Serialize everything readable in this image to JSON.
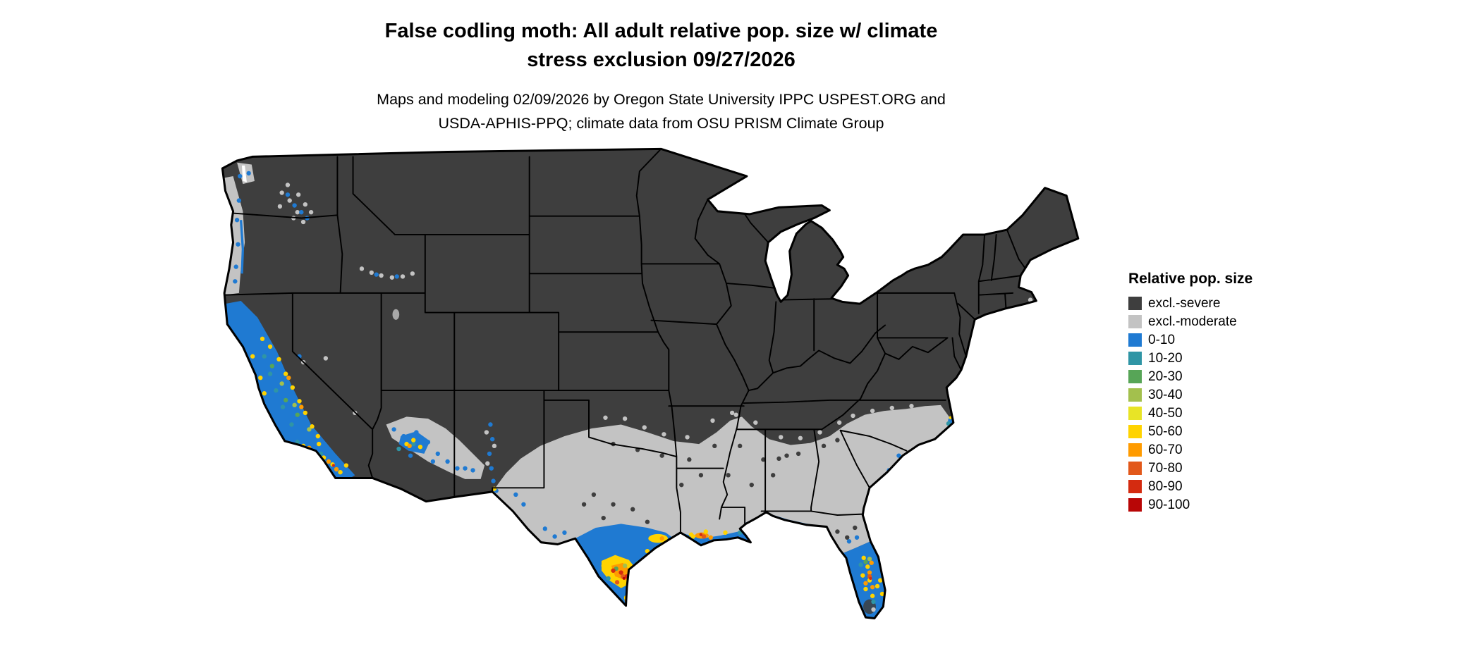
{
  "title": {
    "line1": "False codling moth: All adult relative pop. size w/ climate",
    "line2": "stress exclusion 09/27/2026"
  },
  "subtitle": {
    "line1": "Maps and modeling 02/09/2026 by Oregon State University IPPC USPEST.ORG and",
    "line2": "USDA-APHIS-PPQ; climate data from OSU PRISM Climate Group"
  },
  "map": {
    "region": "Continental United States",
    "background": "#ffffff",
    "border_color": "#000000"
  },
  "legend": {
    "title": "Relative pop. size",
    "items": [
      {
        "label": "excl.-severe",
        "color": "#3e3e3e"
      },
      {
        "label": "excl.-moderate",
        "color": "#c3c3c3"
      },
      {
        "label": "0-10",
        "color": "#1f7ad2"
      },
      {
        "label": "10-20",
        "color": "#2f95a5"
      },
      {
        "label": "20-30",
        "color": "#57a557"
      },
      {
        "label": "30-40",
        "color": "#a3c04d"
      },
      {
        "label": "40-50",
        "color": "#e8e426"
      },
      {
        "label": "50-60",
        "color": "#ffd300"
      },
      {
        "label": "60-70",
        "color": "#ff9b00"
      },
      {
        "label": "70-80",
        "color": "#e2581a"
      },
      {
        "label": "80-90",
        "color": "#d42b10"
      },
      {
        "label": "90-100",
        "color": "#b80606"
      }
    ]
  }
}
